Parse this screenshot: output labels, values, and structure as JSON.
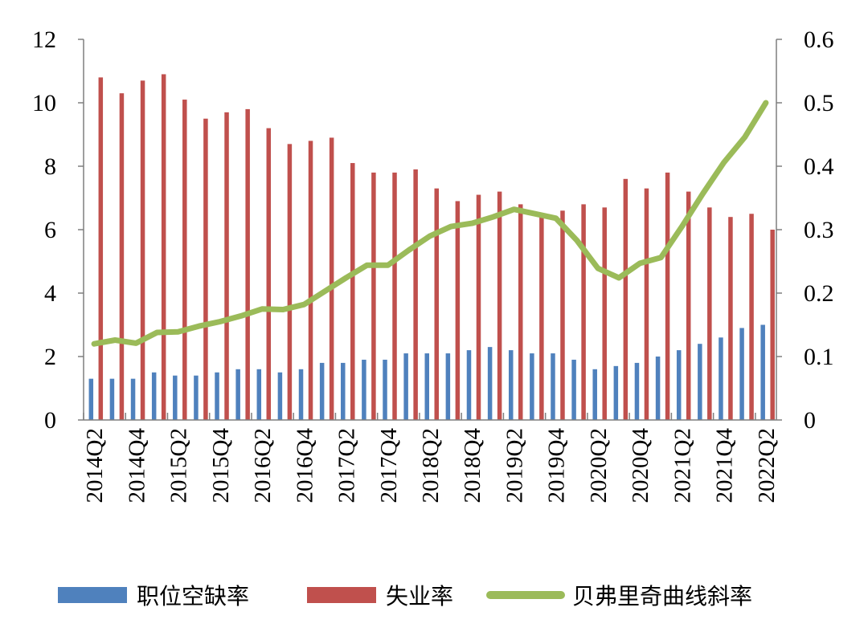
{
  "chart_data": {
    "type": "bar+line",
    "title": "",
    "categories": [
      "2014Q2",
      "2014Q3",
      "2014Q4",
      "2015Q1",
      "2015Q2",
      "2015Q3",
      "2015Q4",
      "2016Q1",
      "2016Q2",
      "2016Q3",
      "2016Q4",
      "2017Q1",
      "2017Q2",
      "2017Q3",
      "2017Q4",
      "2018Q1",
      "2018Q2",
      "2018Q3",
      "2018Q4",
      "2019Q1",
      "2019Q2",
      "2019Q3",
      "2019Q4",
      "2020Q1",
      "2020Q2",
      "2020Q3",
      "2020Q4",
      "2021Q1",
      "2021Q2",
      "2021Q3",
      "2021Q4",
      "2022Q1",
      "2022Q2"
    ],
    "category_labels_shown": [
      "2014Q2",
      "2014Q4",
      "2015Q2",
      "2015Q4",
      "2016Q2",
      "2016Q4",
      "2017Q2",
      "2017Q4",
      "2018Q2",
      "2018Q4",
      "2019Q2",
      "2019Q4",
      "2020Q2",
      "2020Q4",
      "2021Q2",
      "2021Q4",
      "2022Q2"
    ],
    "y_left": {
      "ylim": [
        0,
        12
      ],
      "ticks": [
        "0",
        "2",
        "4",
        "6",
        "8",
        "10",
        "12"
      ]
    },
    "y_right": {
      "ylim": [
        0,
        0.6
      ],
      "ticks": [
        "0",
        "0.1",
        "0.2",
        "0.3",
        "0.4",
        "0.5",
        "0.6"
      ]
    },
    "series": [
      {
        "name": "职位空缺率",
        "type": "bar",
        "axis": "left",
        "color": "#4f81bd",
        "values": [
          1.3,
          1.3,
          1.3,
          1.5,
          1.4,
          1.4,
          1.5,
          1.6,
          1.6,
          1.5,
          1.6,
          1.8,
          1.8,
          1.9,
          1.9,
          2.1,
          2.1,
          2.1,
          2.2,
          2.3,
          2.2,
          2.1,
          2.1,
          1.9,
          1.6,
          1.7,
          1.8,
          2.0,
          2.2,
          2.4,
          2.6,
          2.9,
          3.0
        ]
      },
      {
        "name": "失业率",
        "type": "bar",
        "axis": "left",
        "color": "#c0504d",
        "values": [
          10.8,
          10.3,
          10.7,
          10.9,
          10.1,
          9.5,
          9.7,
          9.8,
          9.2,
          8.7,
          8.8,
          8.9,
          8.1,
          7.8,
          7.8,
          7.9,
          7.3,
          6.9,
          7.1,
          7.2,
          6.8,
          6.4,
          6.6,
          6.8,
          6.7,
          7.6,
          7.3,
          7.8,
          7.2,
          6.7,
          6.4,
          6.5,
          6.0
        ]
      },
      {
        "name": "贝弗里奇曲线斜率",
        "type": "line",
        "axis": "right",
        "color": "#9bbb59",
        "values": [
          0.12,
          0.126,
          0.121,
          0.138,
          0.139,
          0.148,
          0.155,
          0.164,
          0.175,
          0.174,
          0.182,
          0.203,
          0.224,
          0.244,
          0.244,
          0.268,
          0.29,
          0.305,
          0.31,
          0.32,
          0.332,
          0.325,
          0.318,
          0.283,
          0.239,
          0.224,
          0.247,
          0.256,
          0.305,
          0.357,
          0.406,
          0.446,
          0.5
        ]
      }
    ],
    "grid": false,
    "legend_position": "bottom"
  }
}
